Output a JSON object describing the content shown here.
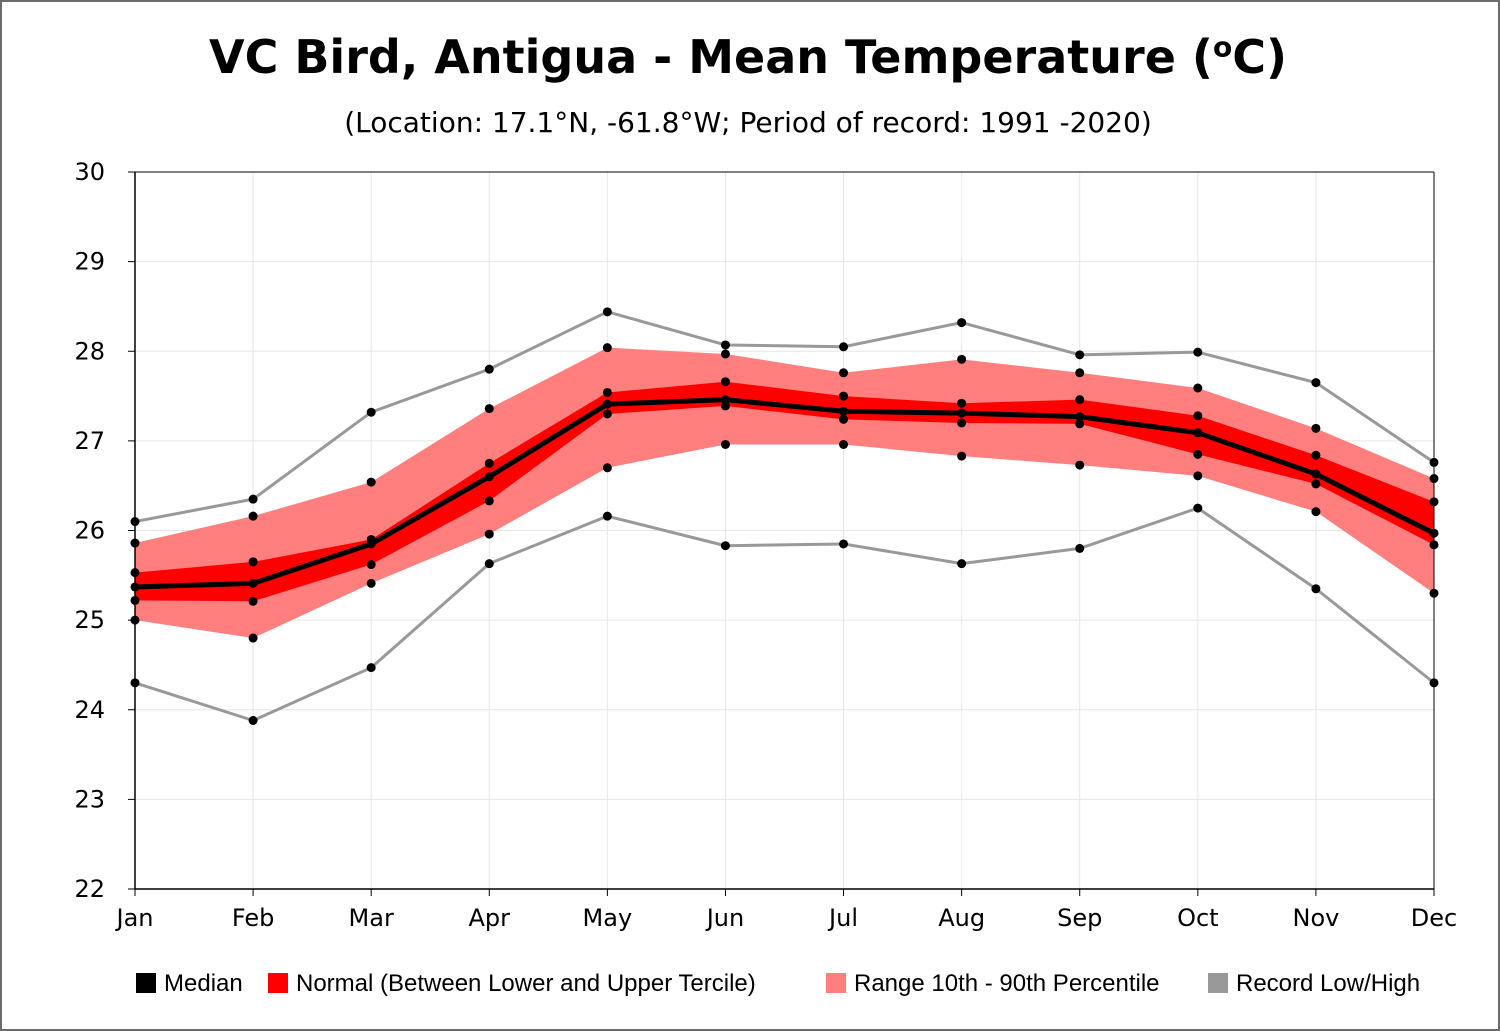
{
  "title_main": "VC Bird, Antigua - Mean Temperature (",
  "title_sup": "o",
  "title_end": "C)",
  "subtitle": "(Location: 17.1°N, -61.8°W; Period of record: 1991 -2020)",
  "chart_data": {
    "type": "area",
    "categories": [
      "Jan",
      "Feb",
      "Mar",
      "Apr",
      "May",
      "Jun",
      "Jul",
      "Aug",
      "Sep",
      "Oct",
      "Nov",
      "Dec"
    ],
    "ylim": [
      22,
      30
    ],
    "yticks": [
      22,
      23,
      24,
      25,
      26,
      27,
      28,
      29,
      30
    ],
    "grid": true,
    "legend_position": "bottom",
    "series": [
      {
        "name": "Record Low/High",
        "key": "record_high",
        "values": [
          26.1,
          26.35,
          27.32,
          27.8,
          28.44,
          28.07,
          28.05,
          28.32,
          27.96,
          27.99,
          27.65,
          26.76
        ],
        "color": "#999999"
      },
      {
        "name": "Record Low/High",
        "key": "record_low",
        "values": [
          24.3,
          23.88,
          24.47,
          25.63,
          26.16,
          25.83,
          25.85,
          25.63,
          25.8,
          26.25,
          25.35,
          24.3
        ],
        "color": "#999999"
      },
      {
        "name": "Range 10th - 90th Percentile",
        "key": "p90",
        "values": [
          25.86,
          26.16,
          26.54,
          27.36,
          28.04,
          27.97,
          27.76,
          27.91,
          27.76,
          27.59,
          27.14,
          26.58
        ],
        "color": "#ff7f7f"
      },
      {
        "name": "Range 10th - 90th Percentile",
        "key": "p10",
        "values": [
          25.0,
          24.8,
          25.41,
          25.96,
          26.7,
          26.96,
          26.96,
          26.83,
          26.73,
          26.61,
          26.21,
          25.3
        ],
        "color": "#ff7f7f"
      },
      {
        "name": "Normal (Between Lower and Upper Tercile)",
        "key": "upper_tercile",
        "values": [
          25.53,
          25.65,
          25.9,
          26.75,
          27.54,
          27.66,
          27.5,
          27.42,
          27.46,
          27.28,
          26.84,
          26.32
        ],
        "color": "#ff0000"
      },
      {
        "name": "Normal (Between Lower and Upper Tercile)",
        "key": "lower_tercile",
        "values": [
          25.22,
          25.21,
          25.62,
          26.33,
          27.3,
          27.39,
          27.24,
          27.2,
          27.19,
          26.85,
          26.52,
          25.84
        ],
        "color": "#ff0000"
      },
      {
        "name": "Median",
        "key": "median",
        "values": [
          25.37,
          25.41,
          25.85,
          26.6,
          27.41,
          27.46,
          27.33,
          27.31,
          27.27,
          27.09,
          26.63,
          25.97
        ],
        "color": "#000000"
      }
    ],
    "legend": [
      {
        "label": "Median",
        "color": "#000000"
      },
      {
        "label": "Normal (Between Lower and Upper Tercile)",
        "color": "#ff0000"
      },
      {
        "label": "Range 10th - 90th Percentile",
        "color": "#ff7f7f"
      },
      {
        "label": "Record Low/High",
        "color": "#999999"
      }
    ]
  }
}
